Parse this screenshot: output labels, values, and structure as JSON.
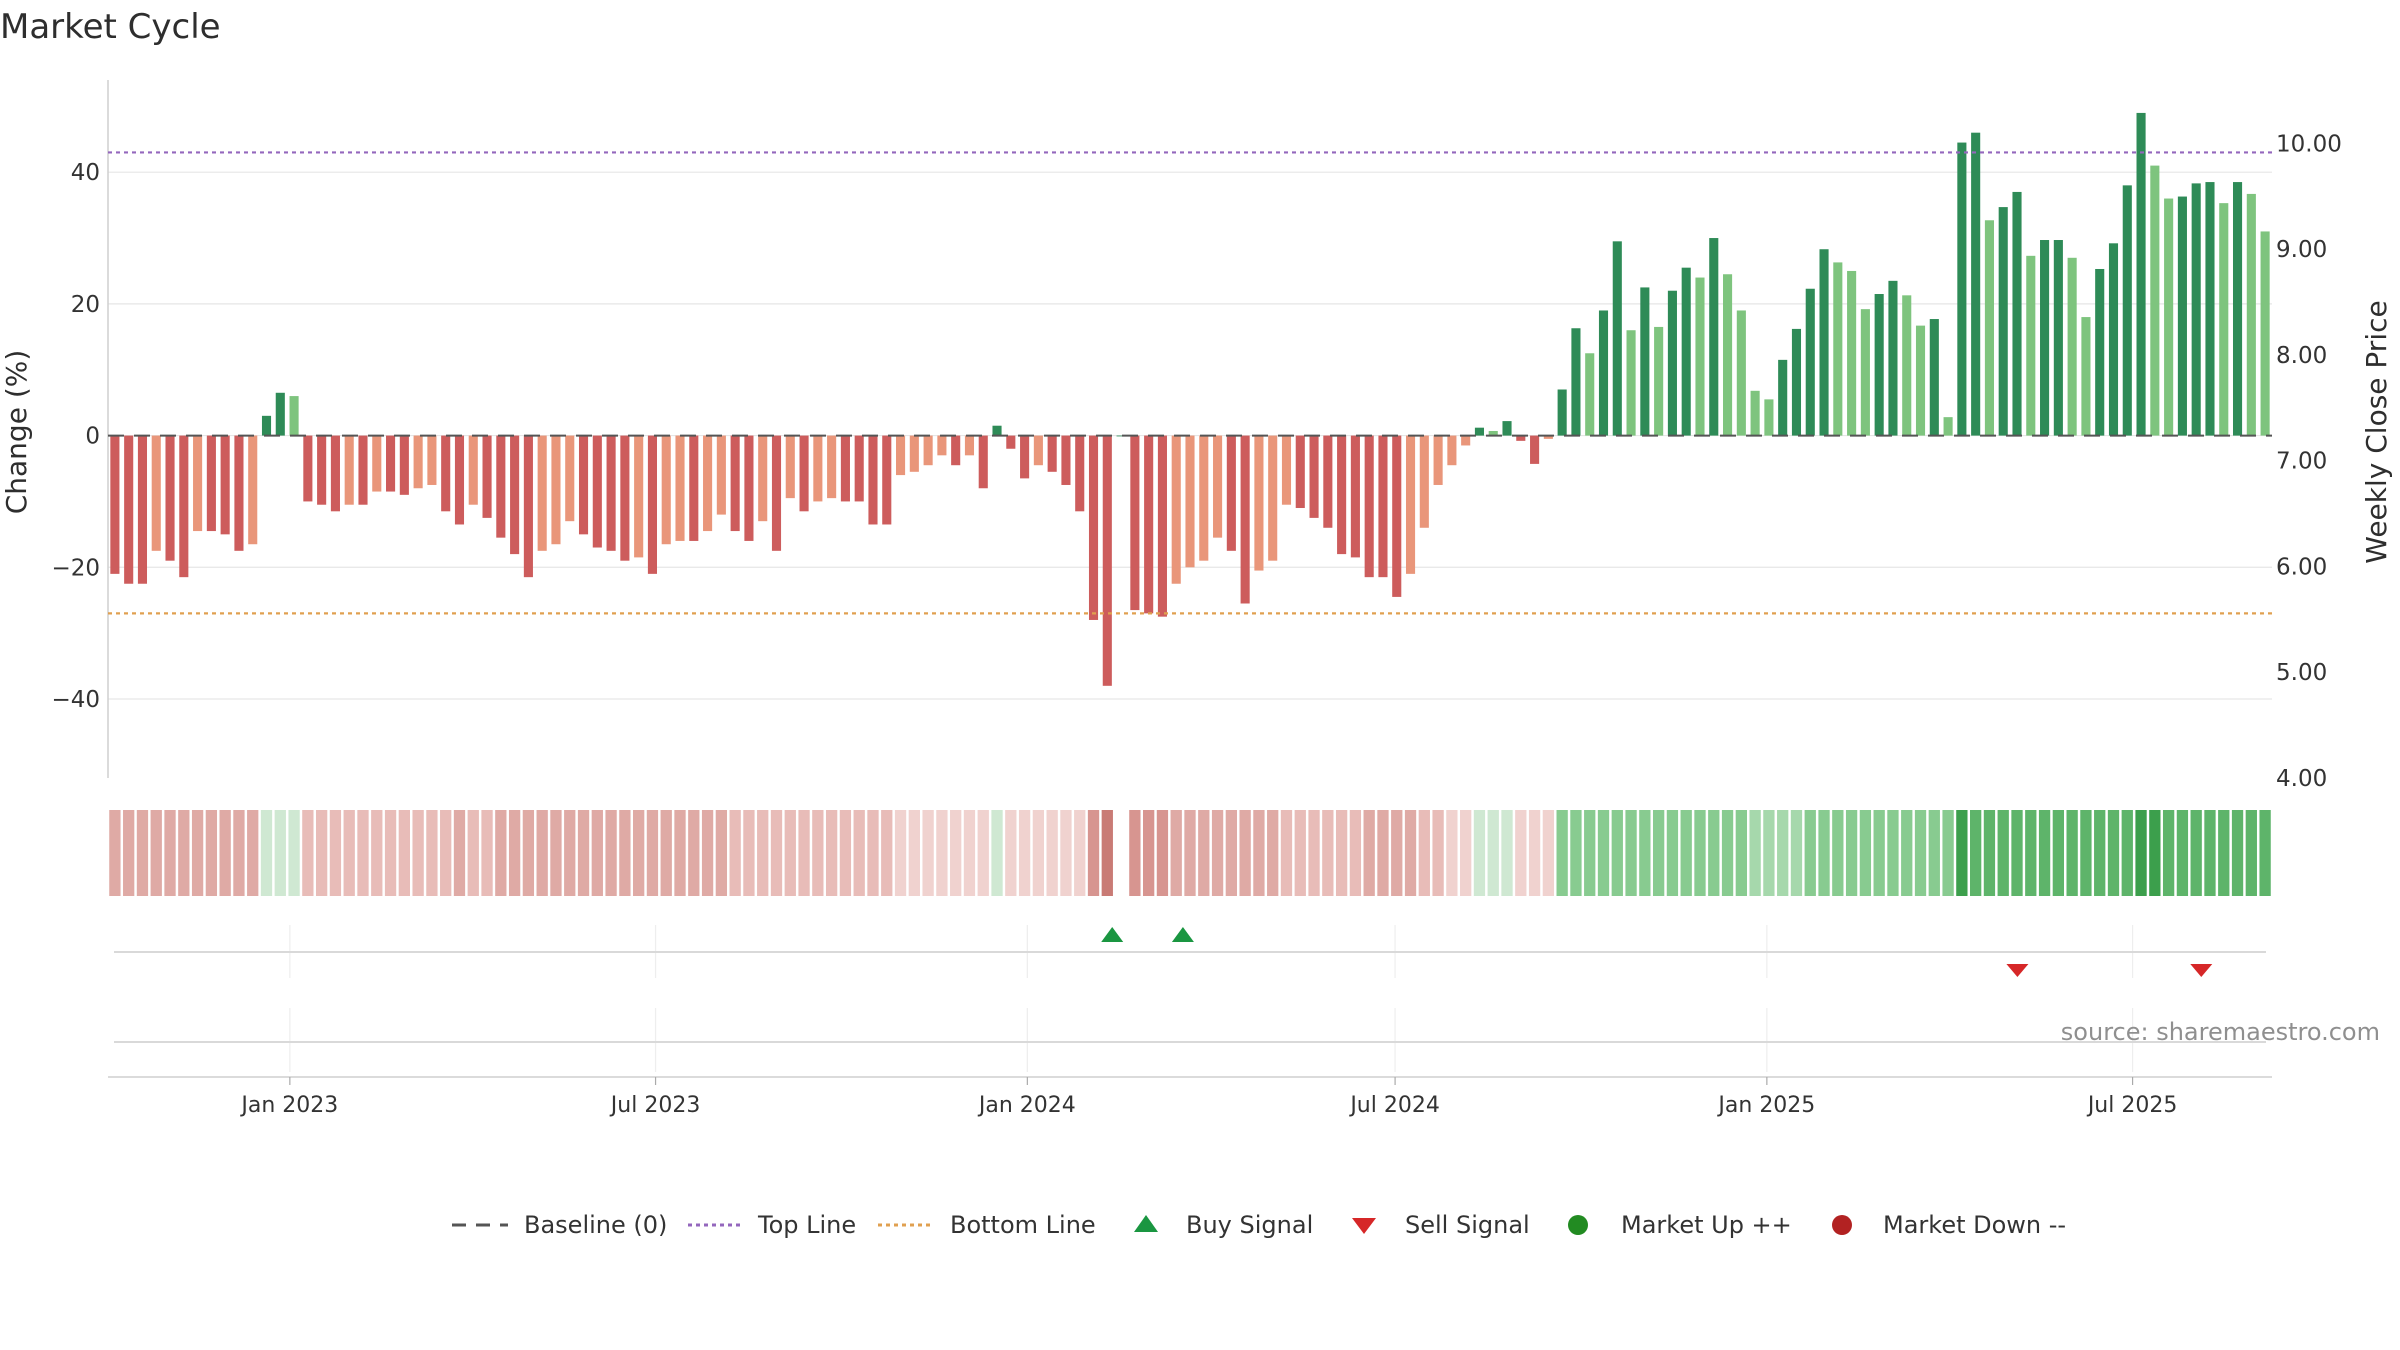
{
  "chart_data": {
    "type": "bar",
    "title": "Market Cycle",
    "ylabel": "Change (%)",
    "y2label": "Weekly Close Price",
    "ylim": [
      -52,
      54
    ],
    "y_ticks": [
      40,
      20,
      0,
      -20,
      -40
    ],
    "y_tick_labels": [
      "40",
      "20",
      "0",
      "−20",
      "−40"
    ],
    "y2lim": [
      4.0,
      10.6
    ],
    "y2_ticks": [
      10,
      9,
      8,
      7,
      6,
      5,
      4
    ],
    "y2_tick_labels": [
      "10.00",
      "9.00",
      "8.00",
      "7.00",
      "6.00",
      "5.00",
      "4.00"
    ],
    "x_range": [
      "2022-10-03",
      "2025-09-08"
    ],
    "x_ticks": [
      "2023-01-01",
      "2023-07-01",
      "2024-01-01",
      "2024-07-01",
      "2025-01-01",
      "2025-07-01"
    ],
    "x_tick_labels": [
      "Jan 2023",
      "Jul 2023",
      "Jan 2024",
      "Jul 2024",
      "Jan 2025",
      "Jul 2025"
    ],
    "start_week": "2022-10-03",
    "top_line": 43,
    "bottom_line": -27,
    "grid": true,
    "colors": {
      "pos_dark": "#2e8b57",
      "pos_light": "#7ec47e",
      "neg_dark": "#cd5c5c",
      "neg_light": "#e9967a",
      "top_line": "#9467bd",
      "bottom_line": "#e0a050",
      "baseline": "#555555",
      "buy": "#1a9641",
      "sell": "#d62728",
      "market_up": "#228b22",
      "market_down": "#b22222"
    },
    "series": [
      {
        "values": [
          -21,
          -22.5,
          -22.5,
          -17.5,
          -19,
          -21.5,
          -14.5,
          -14.5,
          -15,
          -17.5,
          -16.5,
          3,
          6.5,
          6,
          -10,
          -10.5,
          -11.5,
          -10.5,
          -10.5,
          -8.5,
          -8.5,
          -9,
          -8,
          -7.5,
          -11.5,
          -13.5,
          -10.5,
          -12.5,
          -15.5,
          -18,
          -21.5,
          -17.5,
          -16.5,
          -13,
          -15,
          -17,
          -17.5,
          -19,
          -18.5,
          -21,
          -16.5,
          -16,
          -16,
          -14.5,
          -12,
          -14.5,
          -16,
          -13,
          -17.5,
          -9.5,
          -11.5,
          -10,
          -9.5,
          -10,
          -10,
          -13.5,
          -13.5,
          -6,
          -5.5,
          -4.5,
          -3,
          -4.5,
          -3,
          -8,
          1.5,
          -2,
          -6.5,
          -4.5,
          -5.5,
          -7.5,
          -11.5,
          -28,
          -38,
          0,
          -26.5,
          -27,
          -27.5,
          -22.5,
          -20,
          -19,
          -15.5,
          -17.5,
          -25.5,
          -20.5,
          -19,
          -10.5,
          -11,
          -12.5,
          -14,
          -18,
          -18.5,
          -21.5,
          -21.5,
          -24.5,
          -21,
          -14,
          -7.5,
          -4.5,
          -1.5,
          1.2,
          0.7,
          2.2,
          -0.8,
          -4.3,
          -0.5,
          7,
          16.3,
          12.5,
          19,
          29.5,
          16,
          22.5,
          16.5,
          22,
          25.5,
          24,
          30,
          24.5,
          19,
          6.8,
          5.5,
          11.5,
          16.2,
          22.3,
          28.3,
          26.3,
          25,
          19.2,
          21.5,
          23.5,
          21.3,
          16.7,
          17.7,
          2.8,
          44.5,
          46,
          32.7,
          34.7,
          37,
          27.3,
          29.7,
          29.7,
          27,
          18,
          25.3,
          29.2,
          38,
          49,
          41,
          36,
          36.3,
          38.3,
          38.5,
          35.3,
          38.5,
          36.7,
          31
        ]
      }
    ],
    "market_strip_shades": [
      -4,
      -4,
      -4,
      -4,
      -4,
      -4,
      -4,
      -4,
      -4,
      -4,
      -4,
      2,
      2,
      2,
      -3,
      -3,
      -3,
      -3,
      -3,
      -3,
      -3,
      -3,
      -3,
      -3,
      -3,
      -4,
      -3,
      -3,
      -4,
      -4,
      -4,
      -4,
      -4,
      -4,
      -4,
      -4,
      -4,
      -4,
      -4,
      -4,
      -4,
      -4,
      -4,
      -4,
      -4,
      -3,
      -3,
      -3,
      -3,
      -3,
      -3,
      -3,
      -3,
      -3,
      -3,
      -3,
      -3,
      -2,
      -2,
      -2,
      -2,
      -2,
      -2,
      -2,
      2,
      -2,
      -2,
      -2,
      -2,
      -2,
      -2,
      -5,
      -6,
      0,
      -5,
      -5,
      -5,
      -4,
      -4,
      -4,
      -4,
      -4,
      -4,
      -4,
      -4,
      -3,
      -3,
      -3,
      -3,
      -3,
      -3,
      -4,
      -4,
      -4,
      -4,
      -3,
      -3,
      -2,
      -2,
      2,
      2,
      2,
      -2,
      -2,
      -2,
      4,
      4,
      4,
      4,
      4,
      4,
      4,
      4,
      4,
      4,
      4,
      4,
      4,
      4,
      3,
      3,
      3,
      3,
      4,
      4,
      4,
      4,
      4,
      4,
      4,
      4,
      4,
      4,
      4,
      6,
      5,
      5,
      5,
      5,
      5,
      5,
      5,
      5,
      5,
      5,
      5,
      5,
      6,
      6,
      5,
      5,
      5,
      5,
      5,
      5,
      5,
      5
    ],
    "buy_signals": [
      "2024-02-12",
      "2024-03-18"
    ],
    "sell_signals": [
      "2025-05-05",
      "2025-08-04"
    ],
    "annotation": "source: sharemaestro.com",
    "legend_position": "bottom-center",
    "legend": [
      "Baseline (0)",
      "Top Line",
      "Bottom Line",
      "Buy Signal",
      "Sell Signal",
      "Market Up ++",
      "Market Down --"
    ]
  }
}
